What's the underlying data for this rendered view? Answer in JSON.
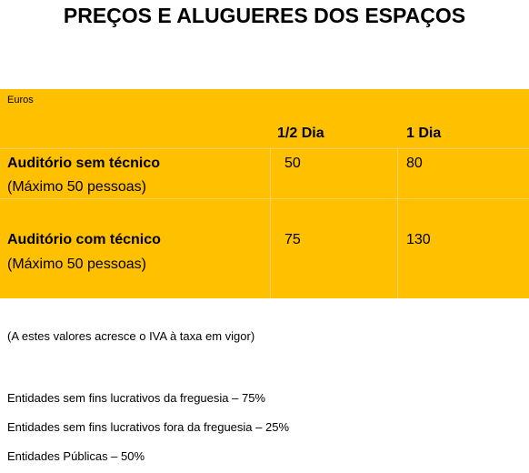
{
  "title": "PREÇOS E ALUGUERES DOS ESPAÇOS",
  "table": {
    "unit": "Euros",
    "columns": [
      "1/2 Dia",
      "1 Dia"
    ],
    "rows": [
      {
        "name": "Auditório sem técnico",
        "note": "(Máximo 50 pessoas)",
        "values": [
          50,
          80
        ]
      },
      {
        "name": "Auditório com técnico",
        "note": "(Máximo 50 pessoas)",
        "values": [
          75,
          130
        ]
      }
    ]
  },
  "vat_note": "(A estes valores acresce o IVA à taxa em vigor)",
  "discounts": [
    "Entidades sem fins lucrativos da freguesia – 75%",
    "Entidades sem fins lucrativos fora da freguesia – 25%",
    "Entidades Públicas – 50%"
  ]
}
